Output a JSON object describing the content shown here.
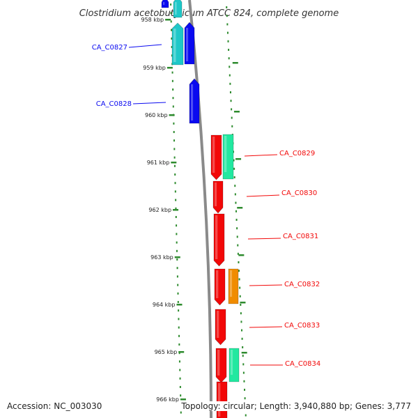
{
  "title": "Clostridium acetobutylicum ATCC 824, complete genome",
  "footer": {
    "accession": "Accession: NC_003030",
    "topology": "Topology: circular; Length: 3,940,880 bp; Genes: 3,777"
  },
  "colors": {
    "backbone": "#8a8a8a",
    "tick": "#2e8b2e",
    "blue": "#0a0af0",
    "cyan": "#1ec8c8",
    "red": "#f20808",
    "green": "#22e8a0",
    "orange": "#f08c00"
  },
  "ticks": [
    "958 kbp",
    "959 kbp",
    "960 kbp",
    "961 kbp",
    "962 kbp",
    "963 kbp",
    "964 kbp",
    "965 kbp",
    "966 kbp"
  ],
  "labels": [
    {
      "text": "CA_C0827",
      "color": "blue"
    },
    {
      "text": "CA_C0828",
      "color": "blue"
    },
    {
      "text": "CA_C0829",
      "color": "red"
    },
    {
      "text": "CA_C0830",
      "color": "red"
    },
    {
      "text": "CA_C0831",
      "color": "red"
    },
    {
      "text": "CA_C0832",
      "color": "red"
    },
    {
      "text": "CA_C0833",
      "color": "red"
    },
    {
      "text": "CA_C0834",
      "color": "red"
    }
  ]
}
